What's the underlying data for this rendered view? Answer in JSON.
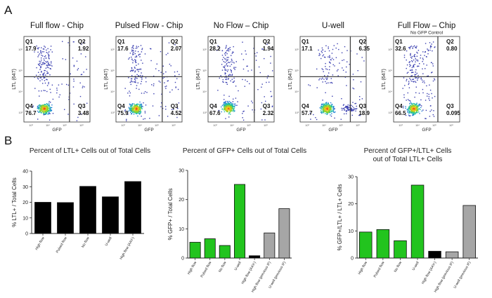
{
  "figure": {
    "panel_a_label": "A",
    "panel_b_label": "B"
  },
  "flow_panels": {
    "xlabel": "GFP",
    "ylabel": "LTL (647)",
    "tick_labels": [
      "10³",
      "10⁴",
      "10⁵",
      "10⁶"
    ],
    "plots": [
      {
        "title": "Full flow - Chip",
        "subtitle": "",
        "q1": "17.9",
        "q2": "1.92",
        "q3": "3.48",
        "q4": "76.7"
      },
      {
        "title": "Pulsed Flow - Chip",
        "subtitle": "",
        "q1": "17.6",
        "q2": "2.07",
        "q3": "4.52",
        "q4": "75.9"
      },
      {
        "title": "No Flow – Chip",
        "subtitle": "",
        "q1": "28.2",
        "q2": "1.94",
        "q3": "2.32",
        "q4": "67.6"
      },
      {
        "title": "U-well",
        "subtitle": "",
        "q1": "17.1",
        "q2": "6.35",
        "q3": "18.9",
        "q4": "57.7"
      },
      {
        "title": "Full Flow – Chip",
        "subtitle": "No GFP Control",
        "q1": "32.6",
        "q2": "0.80",
        "q3": "0.095",
        "q4": "66.5"
      }
    ]
  },
  "chart_data": [
    {
      "type": "bar",
      "title": "Percent of LTL+ Cells out of Total Cells",
      "title_lines": [
        "Percent of LTL+ Cells out of Total Cells"
      ],
      "ylabel": "% LTL+ / Total Cells",
      "ylim": [
        0,
        40
      ],
      "yticks": [
        0,
        10,
        20,
        30,
        40
      ],
      "categories": [
        "High flow",
        "Pulsed flow",
        "No flow",
        "U-well",
        "High flow (AAV-)"
      ],
      "values": [
        20,
        19.8,
        30.2,
        23.5,
        33.3
      ],
      "colors": [
        "#000000",
        "#000000",
        "#000000",
        "#000000",
        "#000000"
      ]
    },
    {
      "type": "bar",
      "title": "Percent of GFP+ Cells out of Total Cells",
      "title_lines": [
        "Percent of GFP+ Cells out of Total Cells"
      ],
      "ylabel": "% GFP+ / Total Cells",
      "ylim": [
        0,
        30
      ],
      "yticks": [
        0,
        10,
        20,
        30
      ],
      "categories": [
        "High flow",
        "Pulsed flow",
        "No flow",
        "U-well",
        "High flow (AAV-)",
        "High flow (previous IF)",
        "U-well (previous IF)"
      ],
      "values": [
        5.4,
        6.6,
        4.3,
        25.2,
        0.8,
        8.6,
        16.9
      ],
      "colors": [
        "#22c41e",
        "#22c41e",
        "#22c41e",
        "#22c41e",
        "#000000",
        "#a6a6a6",
        "#a6a6a6"
      ]
    },
    {
      "type": "bar",
      "title": "Percent of GFP+/LTL+ Cells out of Total LTL+ Cells",
      "title_lines": [
        "Percent of GFP+/LTL+ Cells",
        "out of Total LTL+ Cells"
      ],
      "ylabel": "% GFP+/LTL+ / LTL+ Cells",
      "ylim": [
        0,
        30
      ],
      "yticks": [
        0,
        10,
        20,
        30
      ],
      "categories": [
        "High flow",
        "Pulsed flow",
        "No flow",
        "U-well",
        "High flow (AAV-)",
        "High flow (previous IF)",
        "U-well (previous IF)"
      ],
      "values": [
        9.6,
        10.5,
        6.4,
        26.9,
        2.5,
        2.3,
        19.4
      ],
      "colors": [
        "#22c41e",
        "#22c41e",
        "#22c41e",
        "#22c41e",
        "#000000",
        "#a6a6a6",
        "#a6a6a6"
      ]
    }
  ]
}
